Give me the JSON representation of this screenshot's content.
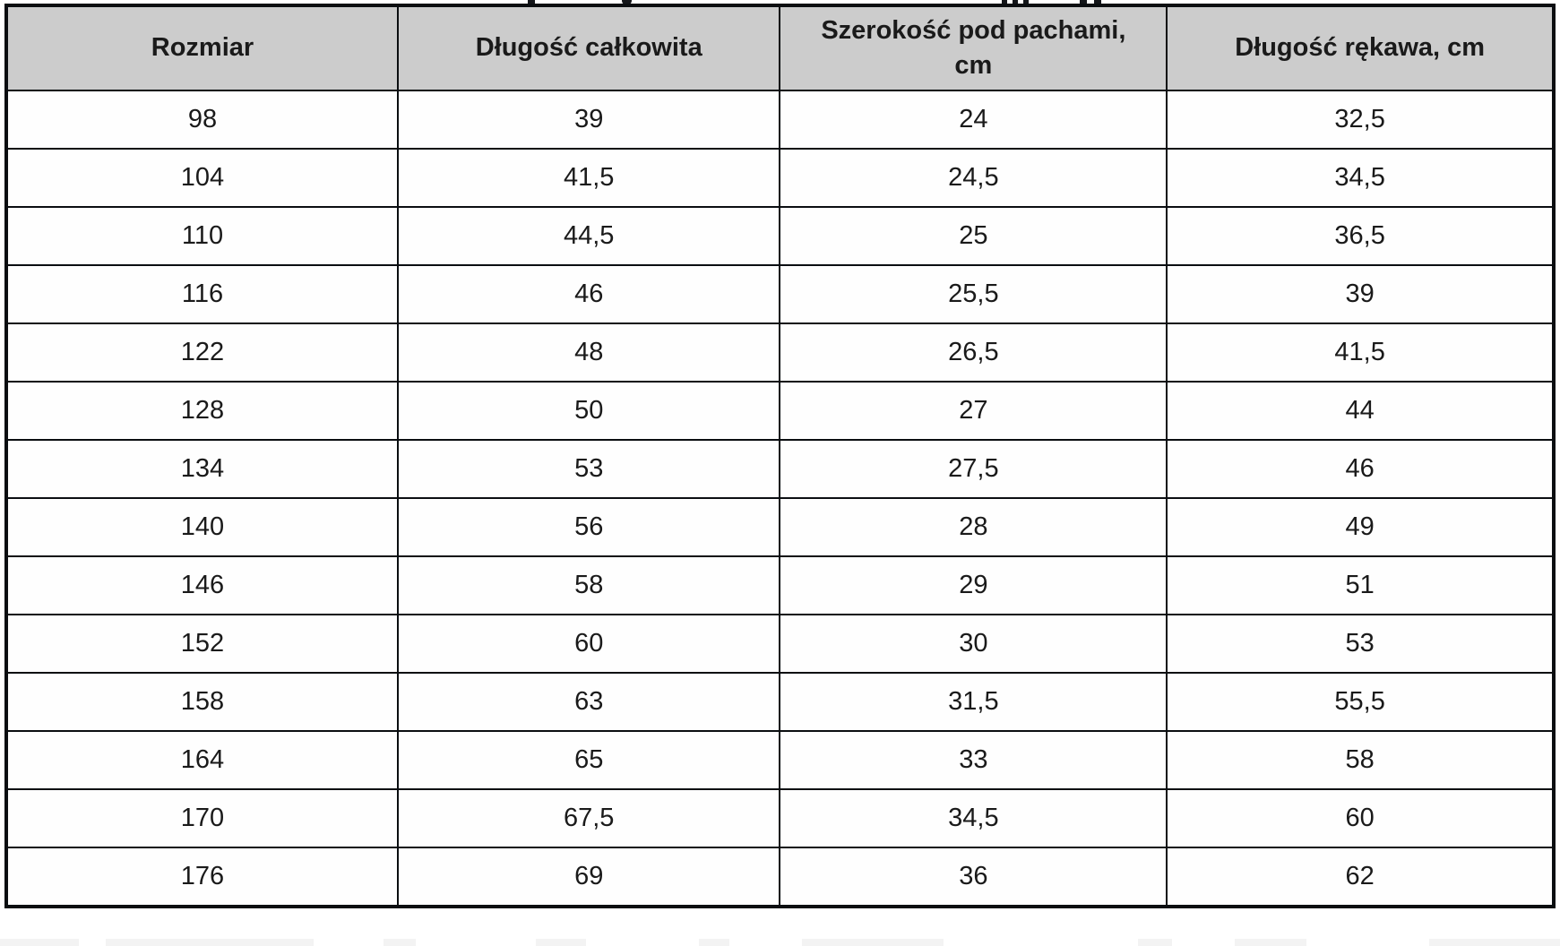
{
  "table": {
    "columns": [
      "Rozmiar",
      "Długość całkowita",
      "Szerokość pod pachami, cm",
      "Długość rękawa, cm"
    ],
    "rows": [
      [
        "98",
        "39",
        "24",
        "32,5"
      ],
      [
        "104",
        "41,5",
        "24,5",
        "34,5"
      ],
      [
        "110",
        "44,5",
        "25",
        "36,5"
      ],
      [
        "116",
        "46",
        "25,5",
        "39"
      ],
      [
        "122",
        "48",
        "26,5",
        "41,5"
      ],
      [
        "128",
        "50",
        "27",
        "44"
      ],
      [
        "134",
        "53",
        "27,5",
        "46"
      ],
      [
        "140",
        "56",
        "28",
        "49"
      ],
      [
        "146",
        "58",
        "29",
        "51"
      ],
      [
        "152",
        "60",
        "30",
        "53"
      ],
      [
        "158",
        "63",
        "31,5",
        "55,5"
      ],
      [
        "164",
        "65",
        "33",
        "58"
      ],
      [
        "170",
        "67,5",
        "34,5",
        "60"
      ],
      [
        "176",
        "69",
        "36",
        "62"
      ]
    ],
    "colors": {
      "header_bg": "#cccccc",
      "border": "#0b0e11",
      "text": "#1a1a1a",
      "page_bg": "#ffffff"
    }
  }
}
